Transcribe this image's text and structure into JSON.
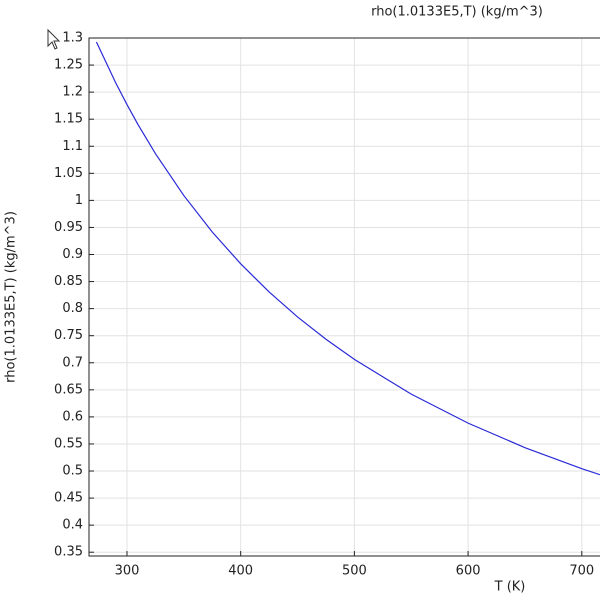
{
  "chart_data": {
    "type": "line",
    "title": "rho(1.0133E5,T) (kg/m^3)",
    "x_label": "T (K)",
    "y_label": "rho(1.0133E5,T) (kg/m^3)",
    "x": [
      273.15,
      290,
      300,
      310,
      325,
      350,
      375,
      400,
      425,
      450,
      475,
      500,
      550,
      600,
      650,
      700,
      716
    ],
    "series": [
      {
        "color": "#2a2ad8",
        "values": [
          1.2927,
          1.2176,
          1.177,
          1.139,
          1.0865,
          1.0089,
          0.9416,
          0.8828,
          0.8308,
          0.7847,
          0.7434,
          0.7062,
          0.642,
          0.5885,
          0.5432,
          0.5044,
          0.4932
        ]
      }
    ],
    "xlim": [
      266.6,
      716
    ],
    "ylim": [
      0.343,
      1.3
    ],
    "xticks": [
      300,
      400,
      500,
      600,
      700
    ],
    "yticks": [
      0.35,
      0.4,
      0.45,
      0.5,
      0.55,
      0.6,
      0.65,
      0.7,
      0.75,
      0.8,
      0.85,
      0.9,
      0.95,
      1,
      1.05,
      1.1,
      1.15,
      1.2,
      1.25,
      1.3
    ],
    "grid": true
  }
}
